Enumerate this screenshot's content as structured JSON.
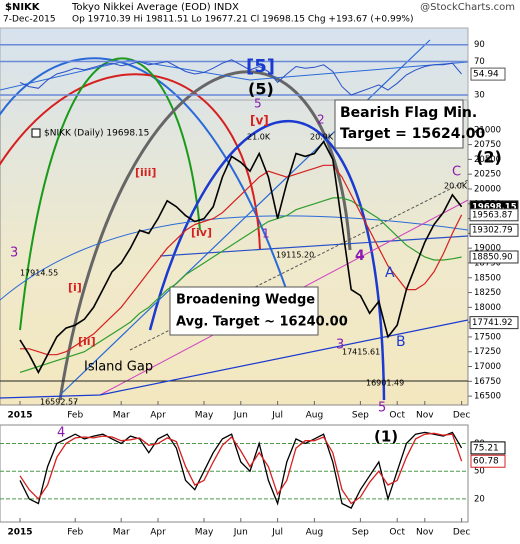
{
  "header": {
    "symbol": "$NIKK",
    "name": "Tokyo Nikkei Average (EOD) INDX",
    "brand": "@StockCharts.com",
    "date": "7-Dec-2015",
    "quote": "Op 19710.39  Hi 19811.51  Lo 19677.21  Cl 19698.15  Chg +193.67 (+0.99%)"
  },
  "chart_data": {
    "type": "line",
    "legend": "$NIKK (Daily) 19698.15",
    "categories": [
      "2015",
      null,
      null,
      null,
      null,
      null,
      "Feb",
      null,
      null,
      null,
      null,
      "Mar",
      null,
      null,
      null,
      "Apr",
      null,
      null,
      null,
      null,
      "May",
      null,
      null,
      null,
      "Jun",
      null,
      null,
      null,
      "Jul",
      null,
      null,
      null,
      "Aug",
      null,
      null,
      null,
      null,
      "Sep",
      null,
      null,
      null,
      "Oct",
      null,
      null,
      "Nov",
      null,
      null,
      null,
      "Dec"
    ],
    "series": [
      {
        "color": "#000000",
        "values": [
          17450,
          17200,
          16900,
          17200,
          17500,
          17650,
          17700,
          17800,
          18000,
          18300,
          18600,
          18750,
          19000,
          19300,
          19250,
          19500,
          19800,
          19700,
          19550,
          19450,
          19500,
          19700,
          20200,
          20550,
          20450,
          20300,
          20600,
          20200,
          19500,
          20100,
          20600,
          20550,
          20600,
          20800,
          20500,
          19400,
          18300,
          18200,
          17900,
          18100,
          17500,
          17700,
          18300,
          18700,
          19100,
          19400,
          19600,
          19900,
          19698.15
        ]
      },
      {
        "color": "#d62020",
        "values": [
          17300,
          17300,
          17250,
          17200,
          17200,
          17250,
          17350,
          17450,
          17550,
          17700,
          17850,
          18000,
          18200,
          18400,
          18600,
          18800,
          19000,
          19150,
          19300,
          19400,
          19450,
          19500,
          19600,
          19750,
          19900,
          20050,
          20200,
          20300,
          20250,
          20200,
          20250,
          20300,
          20350,
          20400,
          20400,
          20200,
          19900,
          19600,
          19300,
          19000,
          18700,
          18500,
          18300,
          18300,
          18400,
          18600,
          18900,
          19250,
          19563.87
        ]
      },
      {
        "color": "#2e9e2e",
        "values": [
          16900,
          16950,
          17000,
          17050,
          17100,
          17150,
          17200,
          17250,
          17350,
          17450,
          17550,
          17650,
          17750,
          17900,
          18000,
          18150,
          18300,
          18400,
          18550,
          18650,
          18750,
          18850,
          18950,
          19050,
          19150,
          19250,
          19350,
          19450,
          19500,
          19550,
          19650,
          19700,
          19750,
          19800,
          19850,
          19850,
          19800,
          19700,
          19600,
          19500,
          19350,
          19200,
          19050,
          18950,
          18850,
          18800,
          18800,
          18820,
          18850.9
        ]
      }
    ],
    "ylim": [
      16350,
      22720
    ],
    "yticks": [
      16500,
      16750,
      17000,
      17250,
      17500,
      17750,
      18000,
      18250,
      18500,
      18750,
      19000,
      19250,
      19500,
      19750,
      20000,
      20250,
      20500,
      20750,
      21000
    ],
    "levels": [
      {
        "value": 19698.15,
        "label": "19698.15"
      },
      {
        "value": 19563.87,
        "label": "19563.87"
      },
      {
        "value": 19302.79,
        "label": "19302.79"
      },
      {
        "value": 18850.9,
        "label": "18850.90"
      },
      {
        "value": 17741.92,
        "label": "17741.92"
      }
    ],
    "annotations": [
      "[5]",
      "(5)",
      "5",
      "[v]",
      "21.0K",
      "20.9K",
      "2",
      "(2)",
      "C",
      "20.0K",
      "[iii]",
      "[iv]",
      "19115.20",
      "1",
      "4",
      "A",
      "B",
      "3",
      "17914.55",
      "[i]",
      "[ii]",
      "16592.57",
      "Island Gap",
      "3",
      "17415.61",
      "16901.49",
      "5",
      "4",
      "(1)",
      "Broadening Wedge",
      "Avg. Target ~ 16240.00",
      "Bearish Flag Min.",
      "Target = 15624.00"
    ],
    "upper_panel": {
      "color": "#2a50c8",
      "ylim": [
        24,
        110
      ],
      "yticks": [
        30,
        70,
        90
      ],
      "values": [
        45,
        40,
        38,
        48,
        55,
        58,
        62,
        60,
        63,
        66,
        68,
        65,
        67,
        70,
        66,
        68,
        70,
        64,
        58,
        55,
        57,
        62,
        68,
        72,
        66,
        60,
        64,
        58,
        45,
        55,
        64,
        62,
        63,
        66,
        58,
        40,
        30,
        34,
        38,
        42,
        36,
        44,
        54,
        60,
        64,
        66,
        66,
        68,
        54.94
      ]
    },
    "lower_panel": {
      "ylim": [
        -5,
        100
      ],
      "yticks": [
        20,
        50,
        80
      ],
      "series": [
        {
          "color": "#000000",
          "values": [
            40,
            20,
            15,
            55,
            80,
            85,
            90,
            85,
            88,
            90,
            85,
            80,
            88,
            85,
            70,
            85,
            90,
            75,
            40,
            30,
            50,
            70,
            85,
            90,
            60,
            50,
            80,
            40,
            15,
            60,
            85,
            80,
            85,
            90,
            60,
            15,
            10,
            30,
            45,
            60,
            20,
            50,
            80,
            90,
            92,
            90,
            88,
            92,
            75.21
          ]
        },
        {
          "color": "#d62020",
          "values": [
            45,
            30,
            20,
            35,
            65,
            80,
            86,
            87,
            86,
            88,
            87,
            83,
            84,
            86,
            78,
            80,
            86,
            82,
            55,
            35,
            40,
            60,
            78,
            87,
            72,
            55,
            70,
            55,
            25,
            40,
            75,
            83,
            83,
            87,
            70,
            30,
            15,
            22,
            38,
            50,
            35,
            40,
            65,
            85,
            90,
            91,
            89,
            90,
            60.78
          ]
        }
      ]
    }
  }
}
